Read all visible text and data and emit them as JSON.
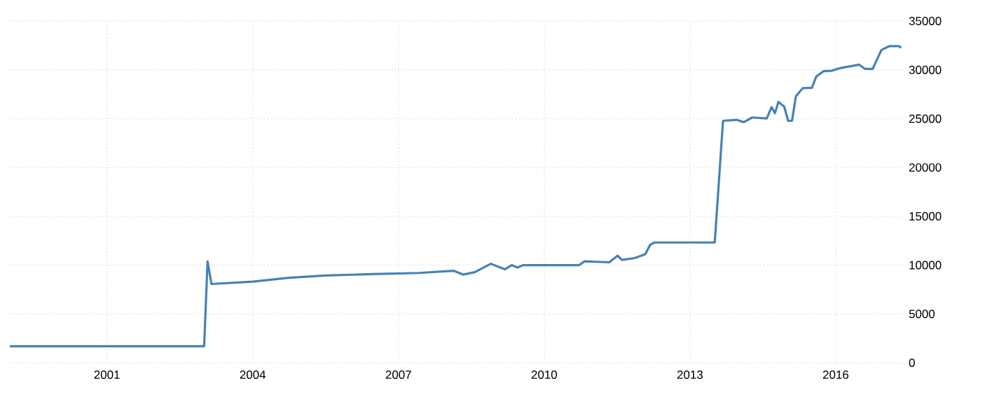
{
  "chart_data": {
    "type": "line",
    "xlim": [
      1999,
      2017.4
    ],
    "ylim": [
      0,
      35000
    ],
    "xticks": [
      2001,
      2004,
      2007,
      2010,
      2013,
      2016
    ],
    "yticks": [
      0,
      5000,
      10000,
      15000,
      20000,
      25000,
      30000,
      35000
    ],
    "grid": true,
    "marker": "none",
    "line_style": "solid",
    "series": [
      {
        "color": "#4682b4",
        "x": [
          1999.0,
          2003.0,
          2003.07,
          2003.15,
          2004.0,
          2004.75,
          2005.5,
          2006.46,
          2007.42,
          2008.14,
          2008.33,
          2008.57,
          2008.9,
          2009.19,
          2009.33,
          2009.45,
          2009.57,
          2010.72,
          2010.83,
          2011.34,
          2011.51,
          2011.6,
          2011.86,
          2012.08,
          2012.18,
          2012.27,
          2013.51,
          2013.68,
          2013.96,
          2014.11,
          2014.28,
          2014.58,
          2014.68,
          2014.75,
          2014.82,
          2014.94,
          2015.02,
          2015.1,
          2015.18,
          2015.32,
          2015.51,
          2015.6,
          2015.75,
          2015.91,
          2016.1,
          2016.48,
          2016.6,
          2016.76,
          2016.94,
          2017.1,
          2017.3,
          2017.35
        ],
        "values": [
          1700,
          1700,
          10400,
          8070,
          8310,
          8700,
          8940,
          9080,
          9200,
          9420,
          9030,
          9280,
          10140,
          9570,
          10000,
          9760,
          10000,
          10000,
          10390,
          10290,
          10970,
          10530,
          10720,
          11110,
          12080,
          12320,
          12320,
          24780,
          24880,
          24640,
          25120,
          25020,
          26180,
          25560,
          26710,
          26230,
          24780,
          24780,
          27290,
          28120,
          28160,
          29320,
          29860,
          29900,
          30190,
          30530,
          30100,
          30100,
          32030,
          32420,
          32420,
          32270
        ]
      }
    ]
  }
}
